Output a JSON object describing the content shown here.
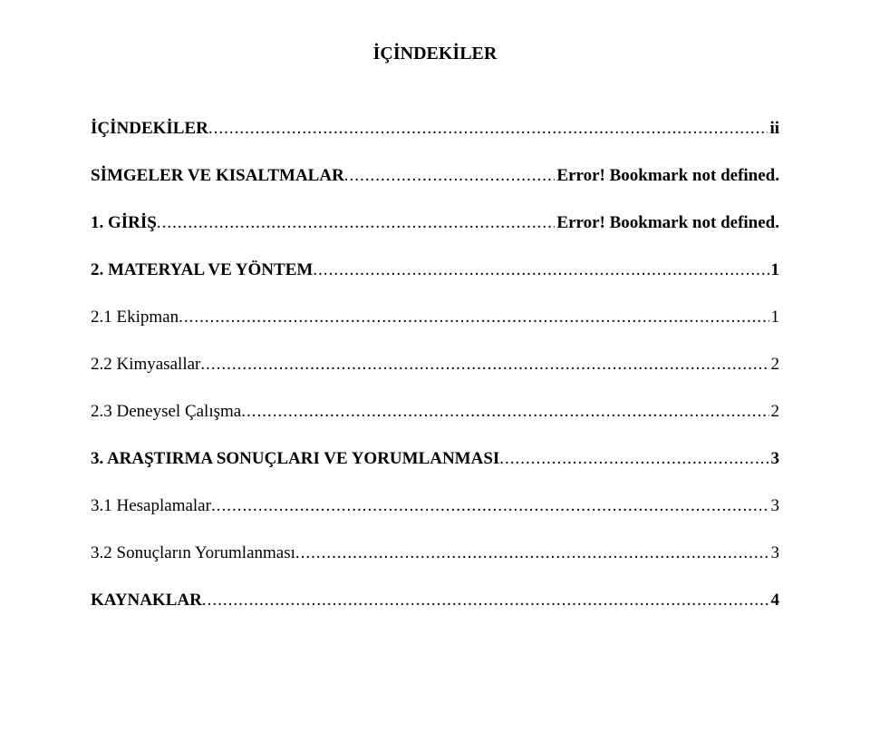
{
  "title": "İÇİNDEKİLER",
  "entries": [
    {
      "label": "İÇİNDEKİLER",
      "page": "ii",
      "bold": true,
      "indent": 0,
      "extraGap": false
    },
    {
      "label": "SİMGELER VE KISALTMALAR",
      "page": "Error! Bookmark not defined.",
      "bold": true,
      "indent": 0,
      "extraGap": false
    },
    {
      "label": "1. GİRİŞ",
      "page": "Error! Bookmark not defined.",
      "bold": true,
      "indent": 0,
      "extraGap": false
    },
    {
      "label": "2. MATERYAL VE YÖNTEM",
      "page": "1",
      "bold": true,
      "indent": 0,
      "extraGap": false
    },
    {
      "label": "2.1 Ekipman",
      "page": "1",
      "bold": false,
      "indent": 0,
      "extraGap": false
    },
    {
      "label": "2.2 Kimyasallar",
      "page": "2",
      "bold": false,
      "indent": 0,
      "extraGap": false
    },
    {
      "label": "2.3 Deneysel Çalışma",
      "page": "2",
      "bold": false,
      "indent": 0,
      "extraGap": false
    },
    {
      "label": "3. ARAŞTIRMA SONUÇLARI VE YORUMLANMASI",
      "page": "3",
      "bold": true,
      "indent": 0,
      "extraGap": false
    },
    {
      "label": "3.1 Hesaplamalar",
      "page": "3",
      "bold": false,
      "indent": 0,
      "extraGap": true
    },
    {
      "label": "3.2 Sonuçların Yorumlanması",
      "page": "3",
      "bold": false,
      "indent": 0,
      "extraGap": false
    },
    {
      "label": "KAYNAKLAR",
      "page": "4",
      "bold": true,
      "indent": 0,
      "extraGap": true
    }
  ]
}
